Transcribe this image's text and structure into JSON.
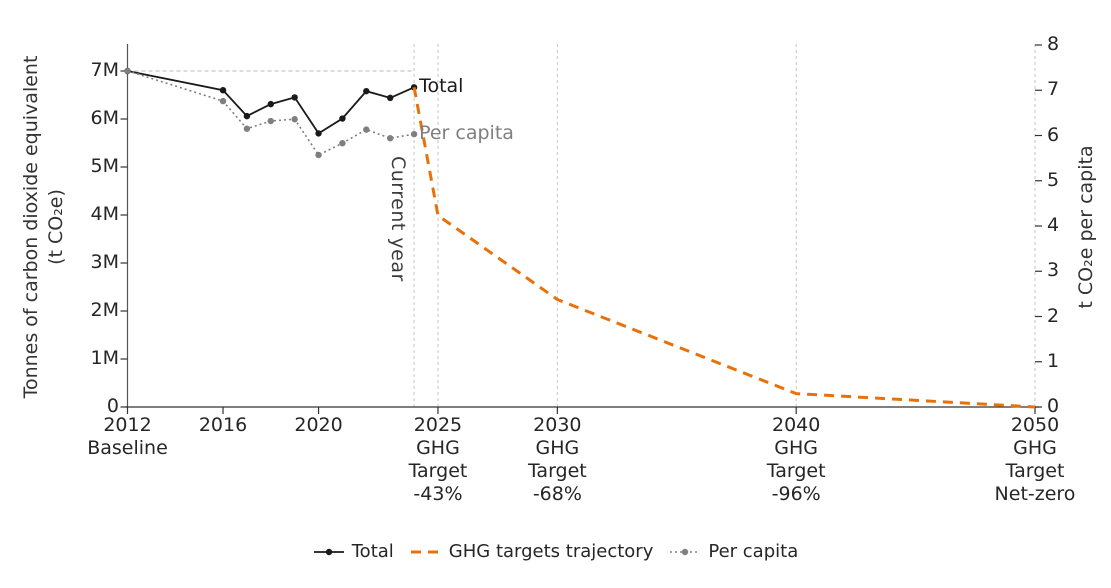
{
  "chart_data": {
    "type": "line",
    "title": "",
    "x_axis": {
      "range": [
        2012,
        2050
      ],
      "ticks": [
        {
          "year": 2012,
          "lines": [
            "2012",
            "Baseline"
          ]
        },
        {
          "year": 2016,
          "lines": [
            "2016"
          ]
        },
        {
          "year": 2020,
          "lines": [
            "2020"
          ]
        },
        {
          "year": 2025,
          "lines": [
            "2025",
            "GHG",
            "Target",
            "-43%"
          ]
        },
        {
          "year": 2030,
          "lines": [
            "2030",
            "GHG",
            "Target",
            "-68%"
          ]
        },
        {
          "year": 2040,
          "lines": [
            "2040",
            "GHG",
            "Target",
            "-96%"
          ]
        },
        {
          "year": 2050,
          "lines": [
            "2050",
            "GHG",
            "Target",
            "Net-zero"
          ]
        }
      ]
    },
    "y_left": {
      "title_lines": [
        "Tonnes of carbon dioxide equivalent",
        "(t CO₂e)"
      ],
      "tick_values": [
        0,
        1,
        2,
        3,
        4,
        5,
        6,
        7
      ],
      "tick_labels": [
        "0",
        "1M",
        "2M",
        "3M",
        "4M",
        "5M",
        "6M",
        "7M"
      ],
      "range": [
        0,
        7.5
      ],
      "unit": "tCO₂e"
    },
    "y_right": {
      "title": "t CO₂e per capita",
      "tick_values": [
        0,
        1,
        2,
        3,
        4,
        5,
        6,
        7,
        8
      ],
      "tick_labels": [
        "0",
        "1",
        "2",
        "3",
        "4",
        "5",
        "6",
        "7",
        "8"
      ],
      "range": [
        0,
        8
      ],
      "unit": "tCO₂e per capita"
    },
    "series": [
      {
        "name": "Total",
        "axis": "left",
        "unit": "million tCO₂e",
        "color": "#1a1a1a",
        "style": "solid-marker",
        "x": [
          2012,
          2016,
          2017,
          2018,
          2019,
          2020,
          2021,
          2022,
          2023,
          2024
        ],
        "y": [
          7.0,
          6.6,
          6.06,
          6.31,
          6.45,
          5.7,
          6.01,
          6.58,
          6.44,
          6.66
        ]
      },
      {
        "name": "GHG targets trajectory",
        "axis": "left",
        "unit": "million tCO₂e",
        "color": "#e8710a",
        "style": "dashed",
        "x": [
          2024,
          2025,
          2030,
          2040,
          2050
        ],
        "y": [
          6.66,
          3.99,
          2.24,
          0.28,
          0
        ]
      },
      {
        "name": "Per capita",
        "axis": "right",
        "unit": "tCO₂e per capita",
        "color": "#7f7f7f",
        "style": "dotted-marker",
        "x": [
          2012,
          2016,
          2017,
          2018,
          2019,
          2020,
          2021,
          2022,
          2023,
          2024
        ],
        "y": [
          7.43,
          6.76,
          6.15,
          6.32,
          6.36,
          5.57,
          5.83,
          6.13,
          5.94,
          6.03
        ]
      }
    ],
    "reference_lines": {
      "horizontal": {
        "value": 7,
        "axis": "left",
        "from_year": 2012,
        "to_year": 2024
      },
      "vertical_years": [
        2024,
        2025,
        2030,
        2040,
        2050
      ],
      "current_year": 2024
    },
    "annotations": [
      {
        "name": "total-line-label",
        "text": "Total",
        "color": "#1a1a1a",
        "year": 2024,
        "value": 6.66,
        "axis": "left"
      },
      {
        "name": "per-capita-line-label",
        "text": "Per capita",
        "color": "#7f7f7f",
        "year": 2024,
        "value": 6.03,
        "axis": "right"
      },
      {
        "name": "current-year-label",
        "text": "Current year",
        "color": "#3c3c3c",
        "year": 2024,
        "vertical": true
      }
    ],
    "legend": [
      {
        "label": "Total",
        "color": "#1a1a1a",
        "style": "solid-marker"
      },
      {
        "label": "GHG targets trajectory",
        "color": "#e8710a",
        "style": "dashed"
      },
      {
        "label": "Per capita",
        "color": "#7f7f7f",
        "style": "dotted-marker"
      }
    ],
    "layout_hints": {
      "grid": "vertical dashed gridlines at target years only",
      "legend_position": "bottom center",
      "background": "#ffffff"
    }
  }
}
